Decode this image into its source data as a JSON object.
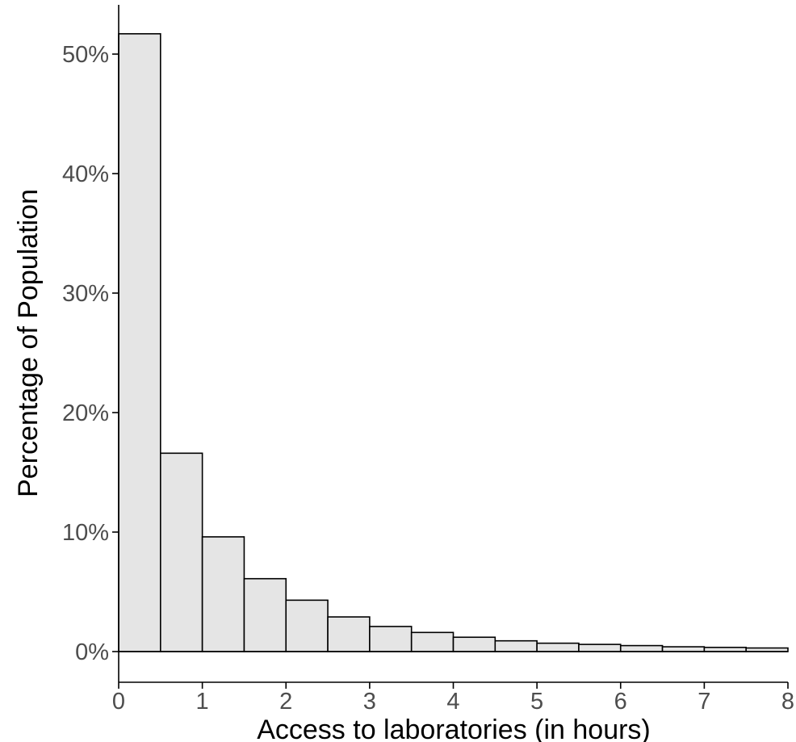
{
  "chart_data": {
    "type": "bar",
    "subtype": "histogram",
    "title": "",
    "xlabel": "Access to laboratories (in hours)",
    "ylabel": "Percentage of Population",
    "xlim": [
      0,
      8
    ],
    "ylim": [
      0,
      0.52
    ],
    "bin_width": 0.5,
    "x_ticks": [
      {
        "value": 0,
        "label": "0"
      },
      {
        "value": 1,
        "label": "1"
      },
      {
        "value": 2,
        "label": "2"
      },
      {
        "value": 3,
        "label": "3"
      },
      {
        "value": 4,
        "label": "4"
      },
      {
        "value": 5,
        "label": "5"
      },
      {
        "value": 6,
        "label": "6"
      },
      {
        "value": 7,
        "label": "7"
      },
      {
        "value": 8,
        "label": "8"
      }
    ],
    "y_ticks": [
      {
        "value": 0.0,
        "label": "0%"
      },
      {
        "value": 0.1,
        "label": "10%"
      },
      {
        "value": 0.2,
        "label": "20%"
      },
      {
        "value": 0.3,
        "label": "30%"
      },
      {
        "value": 0.4,
        "label": "40%"
      },
      {
        "value": 0.5,
        "label": "50%"
      }
    ],
    "bins": [
      {
        "x0": 0.0,
        "x1": 0.5,
        "value": 0.517
      },
      {
        "x0": 0.5,
        "x1": 1.0,
        "value": 0.166
      },
      {
        "x0": 1.0,
        "x1": 1.5,
        "value": 0.096
      },
      {
        "x0": 1.5,
        "x1": 2.0,
        "value": 0.061
      },
      {
        "x0": 2.0,
        "x1": 2.5,
        "value": 0.043
      },
      {
        "x0": 2.5,
        "x1": 3.0,
        "value": 0.029
      },
      {
        "x0": 3.0,
        "x1": 3.5,
        "value": 0.021
      },
      {
        "x0": 3.5,
        "x1": 4.0,
        "value": 0.016
      },
      {
        "x0": 4.0,
        "x1": 4.5,
        "value": 0.012
      },
      {
        "x0": 4.5,
        "x1": 5.0,
        "value": 0.009
      },
      {
        "x0": 5.0,
        "x1": 5.5,
        "value": 0.007
      },
      {
        "x0": 5.5,
        "x1": 6.0,
        "value": 0.006
      },
      {
        "x0": 6.0,
        "x1": 6.5,
        "value": 0.005
      },
      {
        "x0": 6.5,
        "x1": 7.0,
        "value": 0.004
      },
      {
        "x0": 7.0,
        "x1": 7.5,
        "value": 0.0035
      },
      {
        "x0": 7.5,
        "x1": 8.0,
        "value": 0.003
      }
    ],
    "bar_fill": "#e5e5e5",
    "bar_stroke": "#000000",
    "tick_label_color": "#4d4d4d",
    "grid": false,
    "legend": "none"
  }
}
